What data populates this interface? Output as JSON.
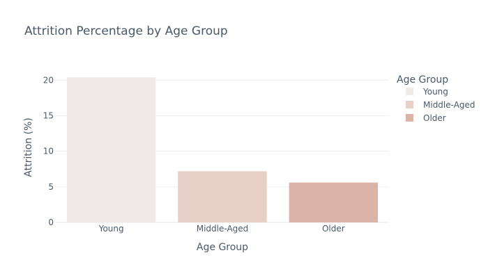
{
  "chart_data": {
    "type": "bar",
    "title": "Attrition Percentage by Age Group",
    "xlabel": "Age Group",
    "ylabel": "Attrition (%)",
    "categories": [
      "Young",
      "Middle-Aged",
      "Older"
    ],
    "values": [
      20.4,
      7.2,
      5.6
    ],
    "colors": [
      "#f0eae8",
      "#e6d0c8",
      "#dbb4a7"
    ],
    "ylim": [
      0,
      21.5
    ],
    "yticks": [
      0,
      5,
      10,
      15,
      20
    ],
    "grid": true,
    "legend": {
      "title": "Age Group",
      "position": "right",
      "items": [
        "Young",
        "Middle-Aged",
        "Older"
      ]
    }
  }
}
